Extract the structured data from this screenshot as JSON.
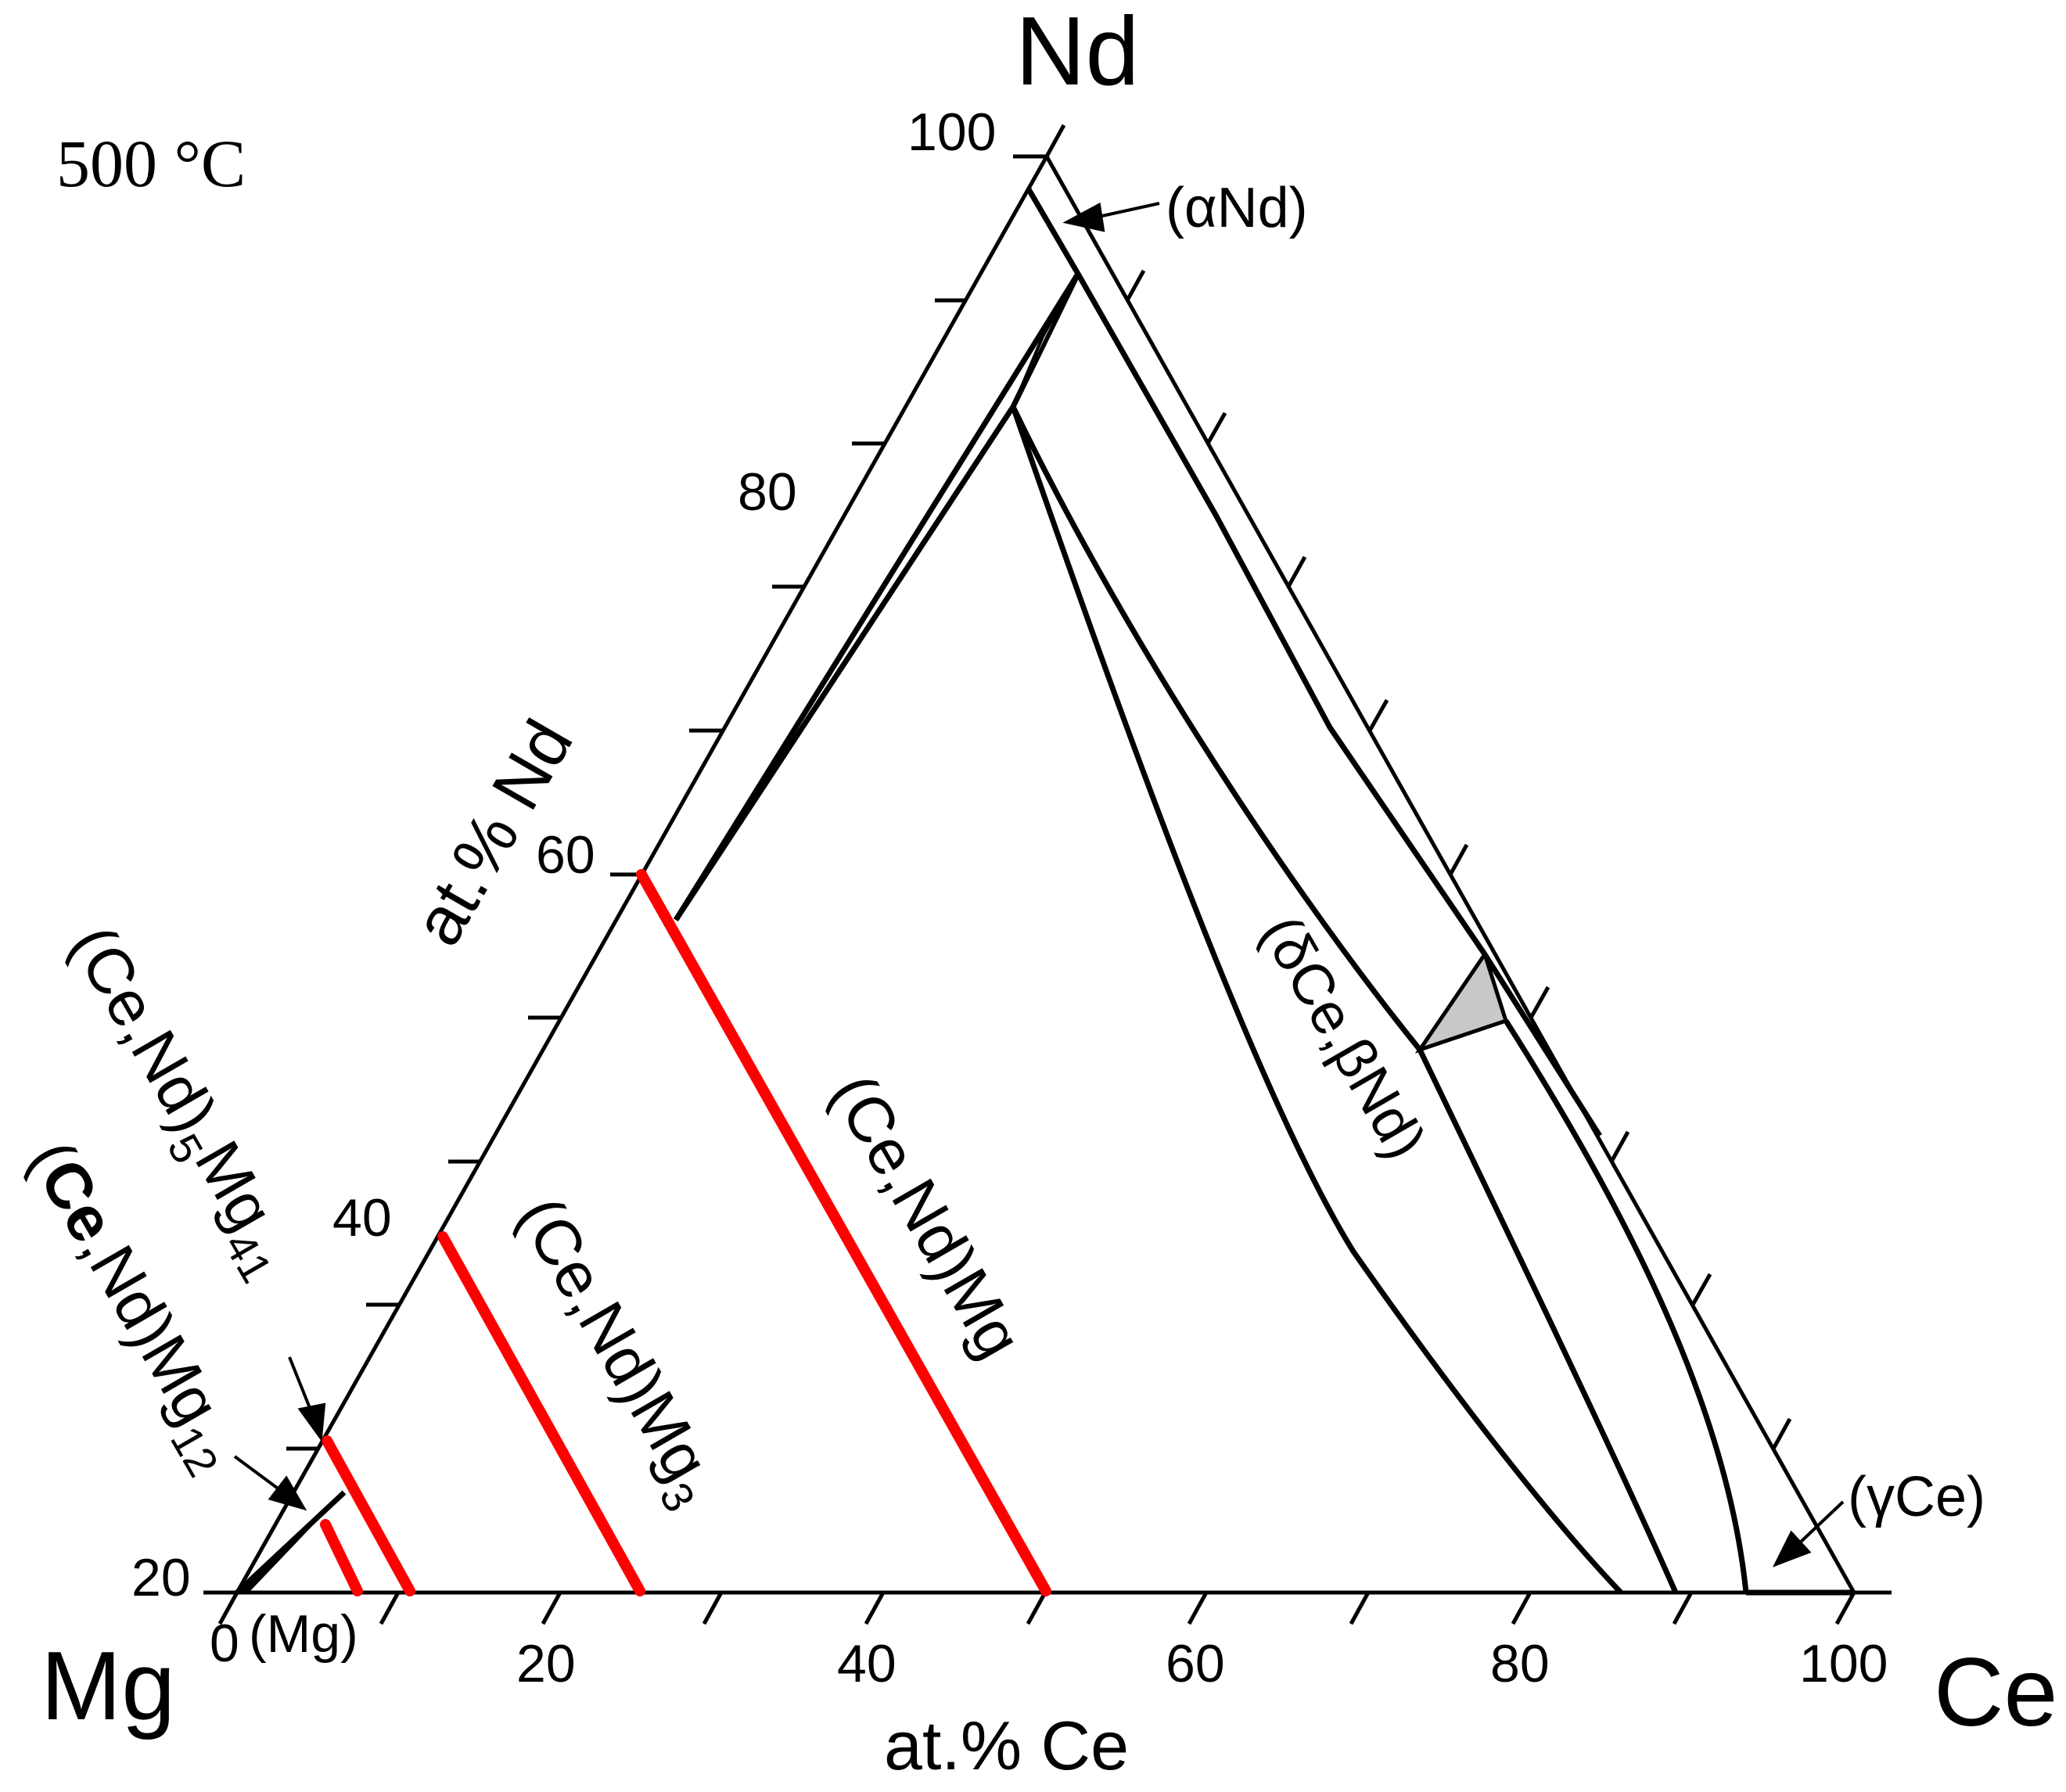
{
  "temperature_label": "500 °C",
  "corners": {
    "top": "Nd",
    "left": "Mg",
    "right": "Ce"
  },
  "axis_titles": {
    "left": "at.% Nd",
    "bottom": "at.% Ce"
  },
  "left_axis_ticks": [
    "100",
    "80",
    "60",
    "40",
    "20"
  ],
  "bottom_axis_ticks": [
    "0",
    "20",
    "40",
    "60",
    "80",
    "100"
  ],
  "phase_labels": {
    "alpha_nd": "(αNd)",
    "gamma_ce": "(γCe)",
    "mg": "(Mg)",
    "delta_ce_beta_nd": "(δCe,βNd)",
    "ce_nd_mg": "(Ce,Nd)Mg",
    "ce_nd_mg3_main": "(Ce,Nd)Mg",
    "ce_nd_mg3_sub": "3",
    "ce_nd_5mg41_prefix": "(Ce,Nd)",
    "ce_nd_5mg41_sub5": "5",
    "ce_nd_5mg41_mg": "Mg",
    "ce_nd_5mg41_sub41": "41",
    "ce_nd_mg12_bold": "Ce",
    "ce_nd_mg12_open": "(",
    "ce_nd_mg12_rest": ",Nd)Mg",
    "ce_nd_mg12_sub": "12"
  },
  "colors": {
    "ink": "#000000",
    "compound_line": "#ff0000",
    "three_phase_fill": "#c8c8c8",
    "background": "#ffffff"
  }
}
